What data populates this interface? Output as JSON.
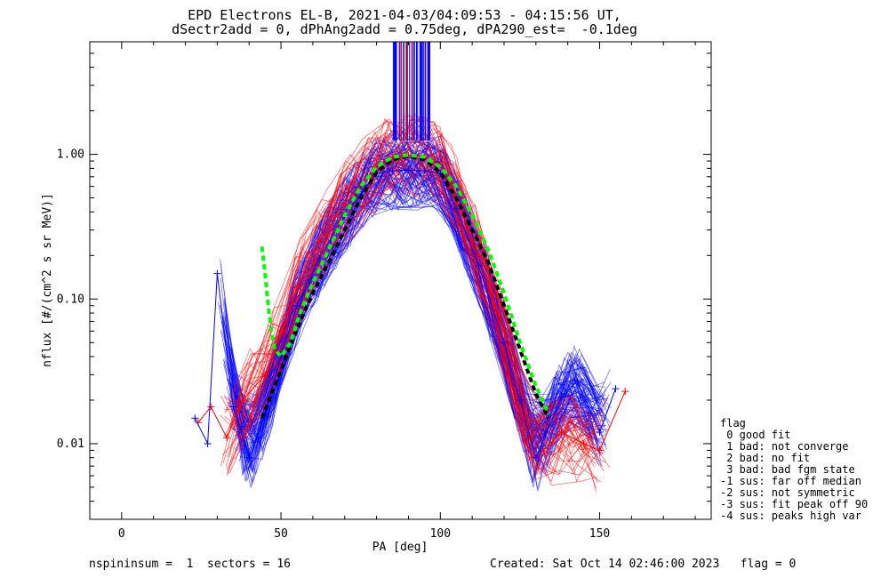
{
  "header": {
    "line1": "EPD Electrons EL-B, 2021-04-03/04:09:53 - 04:15:56 UT,",
    "line2": "dSectr2add = 0, dPhAng2add = 0.75deg, dPA290_est=  -0.1deg"
  },
  "footer": {
    "left": "nspininsum =  1  sectors = 16",
    "right": "Created: Sat Oct 14 02:46:00 2023   flag = 0"
  },
  "legend": {
    "title": "flag",
    "items": [
      " 0 good fit",
      " 1 bad: not converge",
      " 2 bad: no fit",
      " 3 bad: bad fgm state",
      "-1 sus: far off median",
      "-2 sus: not symmetric",
      "-3 sus: fit peak off 90",
      "-4 sus: peaks high var"
    ]
  },
  "colors": {
    "red": "#ff0000",
    "blue": "#0000ff",
    "green": "#00ff00",
    "black": "#000000"
  },
  "chart_data": {
    "type": "scatter",
    "xlabel": "PA [deg]",
    "ylabel": "nflux [#/(cm^2 s sr MeV)]",
    "xlim": [
      -10,
      185
    ],
    "ylim": [
      0.003,
      6.0
    ],
    "yscale": "log",
    "xticks": [
      0,
      50,
      100,
      150
    ],
    "xtick_labels": [
      "0",
      "50",
      "100",
      "150"
    ],
    "yticks": [
      0.01,
      0.1,
      1.0
    ],
    "ytick_labels": [
      "0.01",
      "0.10",
      "1.00"
    ],
    "series": [
      {
        "color": "red",
        "x": [
          24,
          28,
          33,
          38,
          45,
          50,
          55,
          62,
          70,
          80,
          85,
          90,
          95,
          100,
          105,
          112,
          120,
          125,
          130,
          138,
          145,
          150,
          158
        ],
        "y": [
          0.014,
          0.018,
          0.011,
          0.02,
          0.03,
          0.06,
          0.12,
          0.25,
          0.45,
          0.85,
          0.96,
          0.98,
          0.96,
          0.85,
          0.5,
          0.2,
          0.06,
          0.02,
          0.008,
          0.012,
          0.01,
          0.009,
          0.023
        ]
      },
      {
        "color": "blue",
        "x": [
          23,
          27,
          30,
          35,
          40,
          45,
          50,
          55,
          62,
          70,
          80,
          85,
          90,
          95,
          100,
          105,
          112,
          120,
          125,
          130,
          138,
          143,
          150,
          155
        ],
        "y": [
          0.015,
          0.01,
          0.15,
          0.018,
          0.008,
          0.016,
          0.04,
          0.09,
          0.19,
          0.38,
          0.74,
          0.77,
          0.78,
          0.77,
          0.74,
          0.42,
          0.17,
          0.05,
          0.02,
          0.008,
          0.021,
          0.027,
          0.012,
          0.024
        ]
      },
      {
        "color": "black",
        "x": [
          44,
          48,
          52,
          56,
          60,
          65,
          70,
          75,
          80,
          85,
          90,
          95,
          100,
          105,
          110,
          115,
          120,
          125,
          130,
          134
        ],
        "y": [
          0.015,
          0.025,
          0.042,
          0.07,
          0.11,
          0.18,
          0.3,
          0.5,
          0.75,
          0.92,
          0.97,
          0.92,
          0.75,
          0.5,
          0.3,
          0.18,
          0.09,
          0.045,
          0.022,
          0.015
        ]
      },
      {
        "color": "green",
        "x": [
          44,
          45,
          46,
          47,
          48,
          50,
          53,
          56,
          60,
          65,
          70,
          75,
          80,
          85,
          90,
          95,
          100,
          105,
          110,
          115,
          120,
          125,
          130,
          134
        ],
        "y": [
          0.23,
          0.15,
          0.09,
          0.06,
          0.045,
          0.04,
          0.05,
          0.08,
          0.13,
          0.22,
          0.38,
          0.6,
          0.82,
          0.96,
          0.99,
          0.96,
          0.82,
          0.6,
          0.38,
          0.22,
          0.11,
          0.05,
          0.025,
          0.016
        ]
      }
    ]
  }
}
